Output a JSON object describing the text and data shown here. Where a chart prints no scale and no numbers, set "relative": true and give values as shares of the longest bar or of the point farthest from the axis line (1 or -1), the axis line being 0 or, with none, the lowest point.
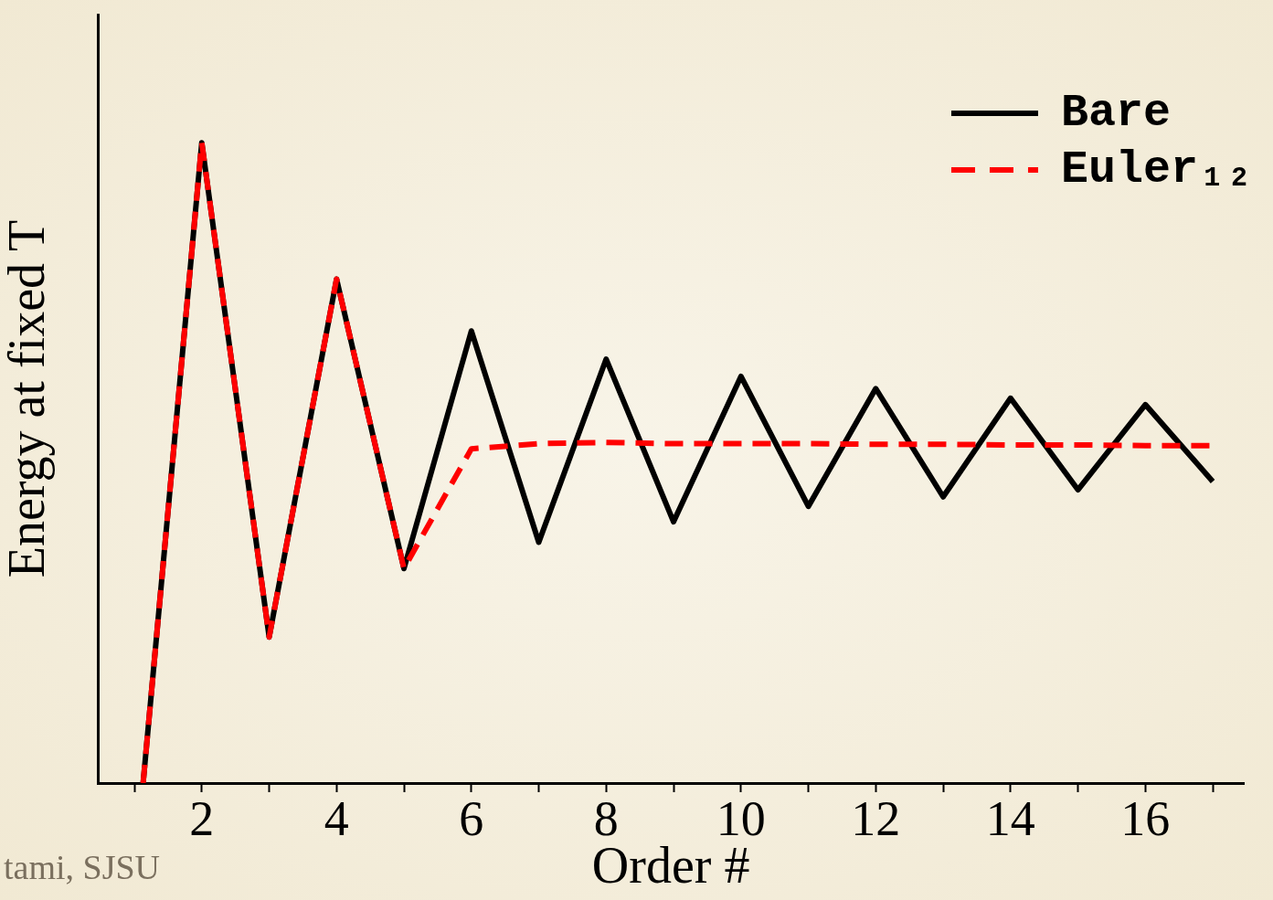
{
  "chart_data": {
    "type": "line",
    "xlabel": "Order #",
    "ylabel": "Energy at fixed T",
    "relative": true,
    "x": [
      1.13,
      2,
      3,
      4,
      5,
      6,
      7,
      8,
      9,
      10,
      11,
      12,
      13,
      14,
      15,
      16,
      17
    ],
    "xlim": [
      0.46,
      17.46
    ],
    "xticks": [
      {
        "value": 1,
        "label": null
      },
      2,
      {
        "value": 3,
        "label": null
      },
      4,
      {
        "value": 5,
        "label": null
      },
      6,
      {
        "value": 7,
        "label": null
      },
      8,
      {
        "value": 9,
        "label": null
      },
      10,
      {
        "value": 11,
        "label": null
      },
      12,
      {
        "value": 13,
        "label": null
      },
      14,
      {
        "value": 15,
        "label": null
      },
      16,
      {
        "value": 17,
        "label": null
      }
    ],
    "series": [
      {
        "name": "Bare",
        "color": "#000000",
        "line_style": "solid",
        "values": [
          0,
          1.0,
          0.228,
          0.787,
          0.335,
          0.706,
          0.376,
          0.662,
          0.408,
          0.635,
          0.432,
          0.616,
          0.447,
          0.601,
          0.458,
          0.591,
          0.471
        ]
      },
      {
        "name": "Euler₁₂",
        "color": "#ff0000",
        "line_style": "dashed",
        "values": [
          0,
          1.0,
          0.228,
          0.787,
          0.335,
          0.522,
          0.53,
          0.532,
          0.53,
          0.53,
          0.53,
          0.529,
          0.529,
          0.528,
          0.528,
          0.527,
          0.527
        ]
      }
    ],
    "marker": "none",
    "grid": false,
    "legend": "top right",
    "annotations": [
      "tami, SJSU"
    ]
  }
}
